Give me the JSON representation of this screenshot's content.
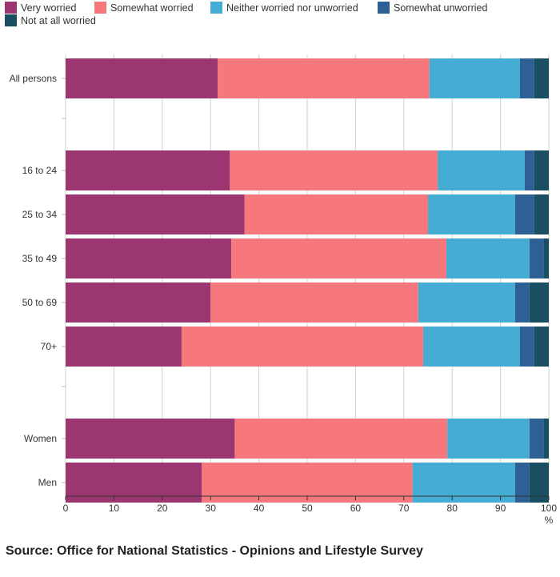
{
  "chart_data": {
    "type": "bar",
    "orientation": "horizontal",
    "stacked": true,
    "title": "",
    "xlabel": "",
    "unit_label": "%",
    "xlim": [
      0,
      100
    ],
    "xticks": [
      0,
      10,
      20,
      30,
      40,
      50,
      60,
      70,
      80,
      90,
      100
    ],
    "groups": [
      [
        "All persons"
      ],
      [
        "16 to 24",
        "25 to 34",
        "35 to 49",
        "50 to 69",
        "70+"
      ],
      [
        "Women",
        "Men"
      ]
    ],
    "categories": [
      "All persons",
      "16 to 24",
      "25 to 34",
      "35 to 49",
      "50 to 69",
      "70+",
      "Women",
      "Men"
    ],
    "series": [
      {
        "name": "Very worried",
        "color": "#9b3670",
        "values": [
          31.5,
          34,
          37,
          34.3,
          30,
          24,
          35,
          28.2
        ]
      },
      {
        "name": "Somewhat worried",
        "color": "#f6787d",
        "values": [
          43.8,
          43,
          38,
          44.5,
          43,
          50,
          44,
          43.6
        ]
      },
      {
        "name": "Neither worried nor unworried",
        "color": "#45acd4",
        "values": [
          18.7,
          18,
          18,
          17.2,
          20,
          20,
          17,
          21.2
        ]
      },
      {
        "name": "Somewhat unworried",
        "color": "#2d6196",
        "values": [
          3,
          2,
          4,
          3,
          3,
          3,
          3,
          3
        ]
      },
      {
        "name": "Not at all worried",
        "color": "#1a4e63",
        "values": [
          3,
          3,
          3,
          1,
          4,
          3,
          1,
          4
        ]
      }
    ],
    "legend_position": "top-left",
    "grid": true
  },
  "source": "Source: Office for National Statistics - Opinions and Lifestyle Survey"
}
